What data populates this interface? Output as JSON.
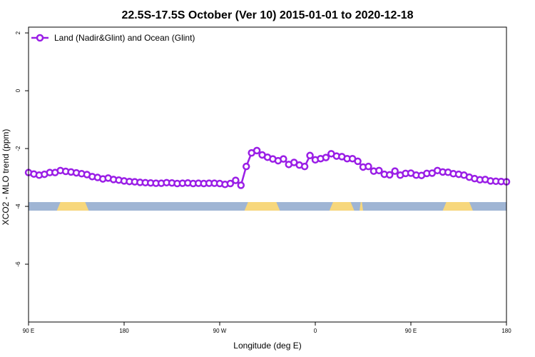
{
  "chart_data": {
    "type": "line",
    "title": "22.5S-17.5S October (Ver 10)   2015-01-01 to 2020-12-18",
    "xlabel": "Longitude (deg E)",
    "ylabel": "XCO2 - MLO trend (ppm)",
    "xlim": [
      -270,
      0
    ],
    "ylim": [
      -8,
      2.2
    ],
    "x_ticks": [
      {
        "value": -270,
        "label": "90 E"
      },
      {
        "value": -216,
        "label": "180"
      },
      {
        "value": -162,
        "label": "90 W"
      },
      {
        "value": -108,
        "label": "0"
      },
      {
        "value": -54,
        "label": "90 E"
      },
      {
        "value": 0,
        "label": "180"
      }
    ],
    "y_ticks": [
      {
        "value": 2,
        "label": "2"
      },
      {
        "value": 0,
        "label": "0"
      },
      {
        "value": -2,
        "label": "-2"
      },
      {
        "value": -4,
        "label": "-4"
      },
      {
        "value": -6,
        "label": "-6"
      }
    ],
    "legend": {
      "position": "top-left"
    },
    "series_color": "#9a1ee6",
    "series": [
      {
        "name": "Land (Nadir&Glint) and Ocean (Glint)",
        "x": [
          -270,
          -267,
          -264,
          -261,
          -258,
          -255,
          -252,
          -249,
          -246,
          -243,
          -240,
          -237,
          -234,
          -231,
          -228,
          -225,
          -222,
          -219,
          -216,
          -213,
          -210,
          -207,
          -204,
          -201,
          -198,
          -195,
          -192,
          -189,
          -186,
          -183,
          -180,
          -177,
          -174,
          -171,
          -168,
          -165,
          -162,
          -159,
          -156,
          -153,
          -150,
          -147,
          -144,
          -141,
          -138,
          -135,
          -132,
          -129,
          -126,
          -123,
          -120,
          -117,
          -114,
          -111,
          -108,
          -105,
          -102,
          -99,
          -96,
          -93,
          -90,
          -87,
          -84,
          -81,
          -78,
          -75,
          -72,
          -69,
          -66,
          -63,
          -60,
          -57,
          -54,
          -51,
          -48,
          -45,
          -42,
          -39,
          -36,
          -33,
          -30,
          -27,
          -24,
          -21,
          -18,
          -15,
          -12,
          -9,
          -6,
          -3,
          0
        ],
        "y": [
          -2.83,
          -2.88,
          -2.92,
          -2.89,
          -2.83,
          -2.83,
          -2.76,
          -2.79,
          -2.81,
          -2.84,
          -2.87,
          -2.9,
          -2.97,
          -3.0,
          -3.05,
          -3.02,
          -3.07,
          -3.09,
          -3.12,
          -3.14,
          -3.15,
          -3.17,
          -3.18,
          -3.19,
          -3.2,
          -3.2,
          -3.18,
          -3.19,
          -3.21,
          -3.2,
          -3.19,
          -3.21,
          -3.2,
          -3.21,
          -3.2,
          -3.2,
          -3.21,
          -3.24,
          -3.21,
          -3.1,
          -3.27,
          -2.62,
          -2.15,
          -2.07,
          -2.22,
          -2.3,
          -2.36,
          -2.42,
          -2.36,
          -2.55,
          -2.48,
          -2.57,
          -2.62,
          -2.24,
          -2.39,
          -2.35,
          -2.31,
          -2.18,
          -2.26,
          -2.28,
          -2.35,
          -2.35,
          -2.44,
          -2.64,
          -2.62,
          -2.78,
          -2.76,
          -2.89,
          -2.91,
          -2.78,
          -2.92,
          -2.86,
          -2.85,
          -2.92,
          -2.93,
          -2.86,
          -2.85,
          -2.76,
          -2.81,
          -2.82,
          -2.87,
          -2.89,
          -2.92,
          -2.99,
          -3.04,
          -3.08,
          -3.07,
          -3.12,
          -3.13,
          -3.14,
          -3.15
        ]
      }
    ],
    "surface_band": {
      "y_value": -4,
      "colors": {
        "ocean": "#9fb5d4",
        "land": "#f7d77c"
      },
      "land_ranges": [
        [
          -254,
          -236
        ],
        [
          -148,
          -128
        ],
        [
          -100,
          -86
        ],
        [
          -83,
          -81
        ],
        [
          -36,
          -19
        ]
      ]
    }
  }
}
